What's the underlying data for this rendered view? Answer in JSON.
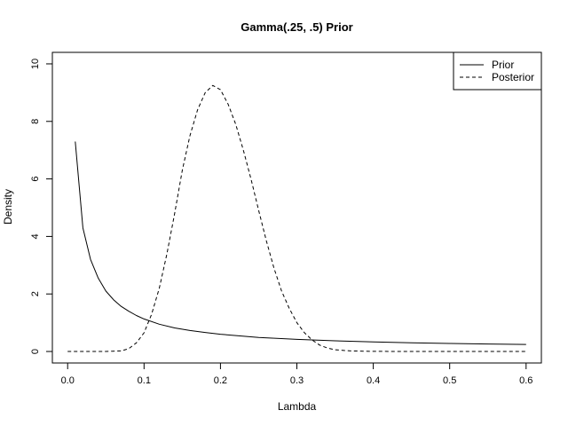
{
  "chart_data": {
    "type": "line",
    "title": "Gamma(.25, .5) Prior",
    "xlabel": "Lambda",
    "ylabel": "Density",
    "xlim": [
      -0.02,
      0.62
    ],
    "ylim": [
      -0.4,
      10.4
    ],
    "x_ticks": [
      0.0,
      0.1,
      0.2,
      0.3,
      0.4,
      0.5,
      0.6
    ],
    "x_tick_labels": [
      "0.0",
      "0.1",
      "0.2",
      "0.3",
      "0.4",
      "0.5",
      "0.6"
    ],
    "y_ticks": [
      0,
      2,
      4,
      6,
      8,
      10
    ],
    "y_tick_labels": [
      "0",
      "2",
      "4",
      "6",
      "8",
      "10"
    ],
    "grid": false,
    "legend": {
      "position": "top-right"
    },
    "series": [
      {
        "name": "Prior",
        "line_style": "solid",
        "points": [
          [
            0.01,
            7.3
          ],
          [
            0.02,
            4.3
          ],
          [
            0.03,
            3.2
          ],
          [
            0.04,
            2.55
          ],
          [
            0.05,
            2.1
          ],
          [
            0.06,
            1.8
          ],
          [
            0.07,
            1.57
          ],
          [
            0.08,
            1.4
          ],
          [
            0.09,
            1.25
          ],
          [
            0.1,
            1.13
          ],
          [
            0.12,
            0.95
          ],
          [
            0.14,
            0.82
          ],
          [
            0.16,
            0.73
          ],
          [
            0.18,
            0.66
          ],
          [
            0.2,
            0.6
          ],
          [
            0.25,
            0.49
          ],
          [
            0.3,
            0.42
          ],
          [
            0.35,
            0.37
          ],
          [
            0.4,
            0.33
          ],
          [
            0.45,
            0.3
          ],
          [
            0.5,
            0.28
          ],
          [
            0.55,
            0.26
          ],
          [
            0.6,
            0.245
          ]
        ]
      },
      {
        "name": "Posterior",
        "line_style": "dashed",
        "points": [
          [
            0.0,
            0.0
          ],
          [
            0.05,
            0.0
          ],
          [
            0.07,
            0.02
          ],
          [
            0.08,
            0.1
          ],
          [
            0.09,
            0.3
          ],
          [
            0.1,
            0.65
          ],
          [
            0.11,
            1.3
          ],
          [
            0.12,
            2.2
          ],
          [
            0.13,
            3.4
          ],
          [
            0.14,
            4.8
          ],
          [
            0.15,
            6.3
          ],
          [
            0.16,
            7.5
          ],
          [
            0.17,
            8.4
          ],
          [
            0.18,
            9.0
          ],
          [
            0.19,
            9.25
          ],
          [
            0.2,
            9.1
          ],
          [
            0.21,
            8.6
          ],
          [
            0.22,
            7.9
          ],
          [
            0.23,
            7.0
          ],
          [
            0.24,
            6.0
          ],
          [
            0.25,
            4.9
          ],
          [
            0.26,
            3.85
          ],
          [
            0.27,
            2.9
          ],
          [
            0.28,
            2.1
          ],
          [
            0.29,
            1.5
          ],
          [
            0.3,
            1.0
          ],
          [
            0.31,
            0.65
          ],
          [
            0.32,
            0.4
          ],
          [
            0.33,
            0.22
          ],
          [
            0.34,
            0.12
          ],
          [
            0.35,
            0.06
          ],
          [
            0.37,
            0.02
          ],
          [
            0.4,
            0.005
          ],
          [
            0.45,
            0.0
          ],
          [
            0.5,
            0.0
          ],
          [
            0.55,
            0.0
          ],
          [
            0.6,
            0.0
          ]
        ]
      }
    ]
  }
}
